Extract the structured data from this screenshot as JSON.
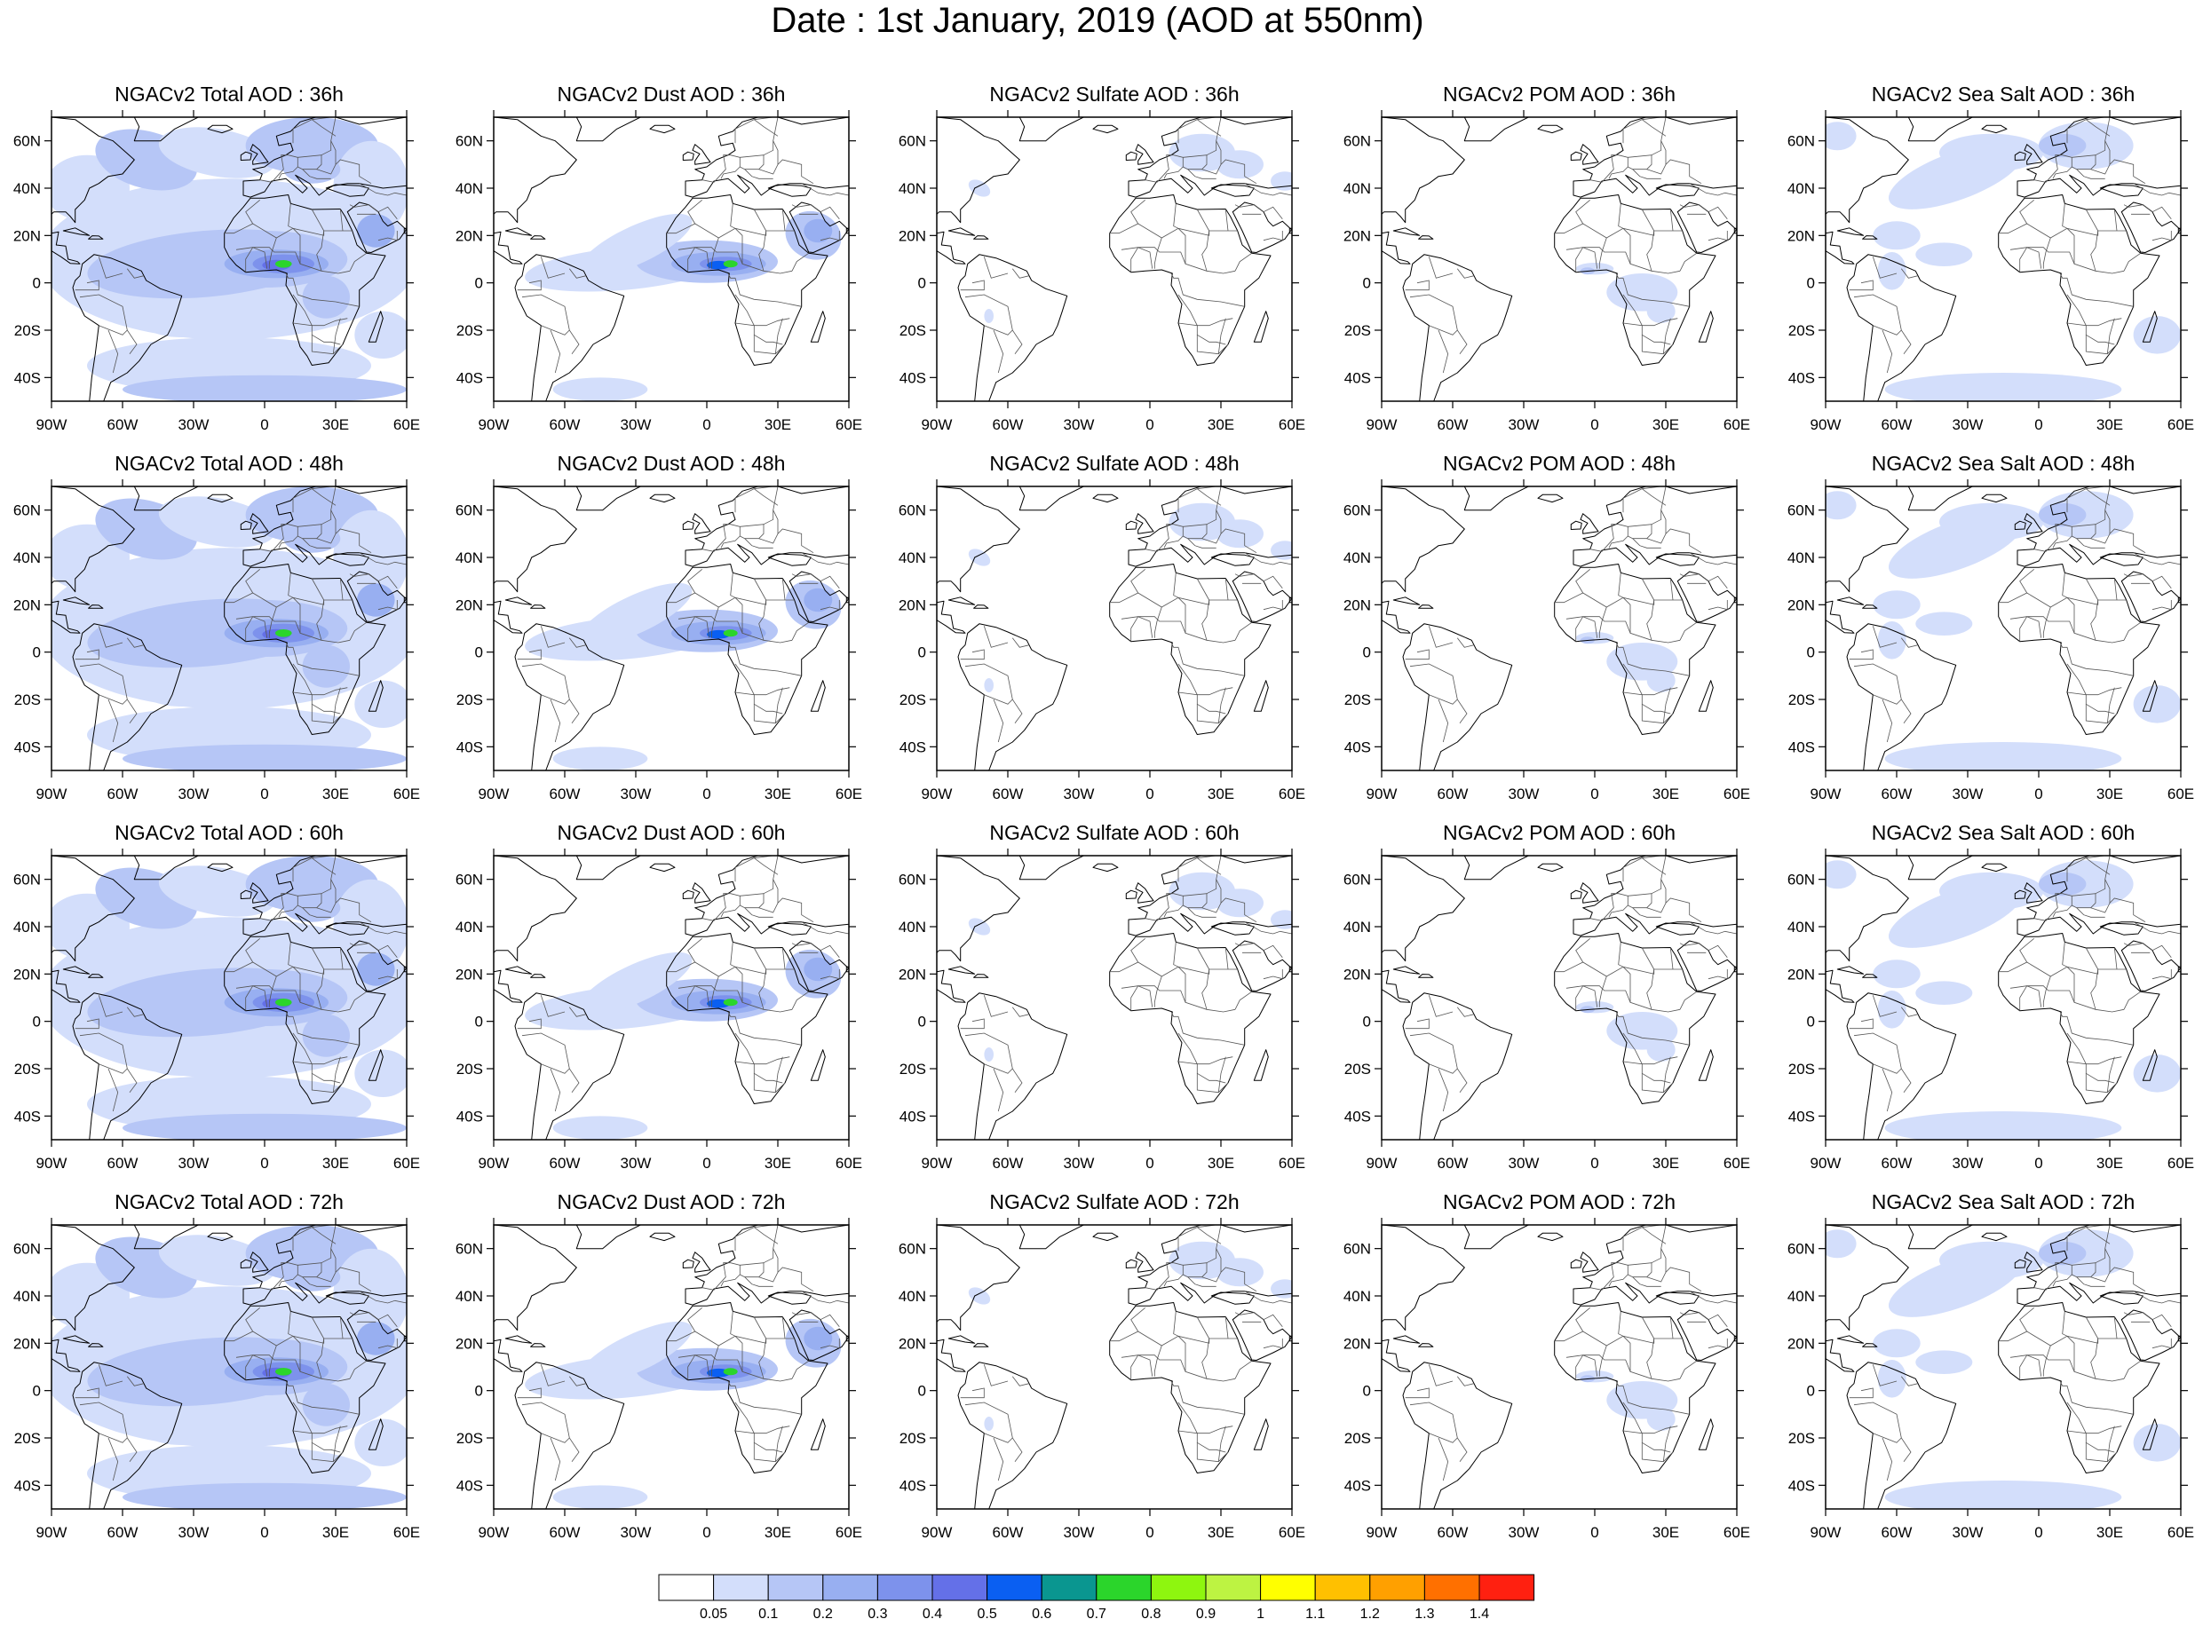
{
  "title": "Date : 1st January, 2019 (AOD at 550nm)",
  "projection": "cylindrical-equidistant",
  "map_extent": {
    "lon": [
      -90,
      60
    ],
    "lat": [
      -50,
      70
    ]
  },
  "lon_ticks": [
    {
      "value": -90,
      "label": "90W"
    },
    {
      "value": -60,
      "label": "60W"
    },
    {
      "value": -30,
      "label": "30W"
    },
    {
      "value": 0,
      "label": "0"
    },
    {
      "value": 30,
      "label": "30E"
    },
    {
      "value": 60,
      "label": "60E"
    }
  ],
  "lat_ticks": [
    {
      "value": 60,
      "label": "60N"
    },
    {
      "value": 40,
      "label": "40N"
    },
    {
      "value": 20,
      "label": "20N"
    },
    {
      "value": 0,
      "label": "0"
    },
    {
      "value": -20,
      "label": "20S"
    },
    {
      "value": -40,
      "label": "40S"
    }
  ],
  "colors": {
    "coastline": "#000000",
    "border": "#555555",
    "levels": [
      "#ffffff",
      "#d3defb",
      "#b6c6f6",
      "#98aff1",
      "#7d92ec",
      "#6470e8",
      "#0a5ff2",
      "#0a9690",
      "#2bd52b",
      "#8ef60f",
      "#bdf342",
      "#ffff00",
      "#ffc000",
      "#ffa000",
      "#ff7000",
      "#ff2010"
    ]
  },
  "colorbar": {
    "labels": [
      "0.05",
      "0.1",
      "0.2",
      "0.3",
      "0.4",
      "0.5",
      "0.6",
      "0.7",
      "0.8",
      "0.9",
      "1",
      "1.1",
      "1.2",
      "1.3",
      "1.4"
    ]
  },
  "panels": [
    {
      "title": "NGACv2 Total AOD : 36h",
      "kind": "total",
      "hour": 36
    },
    {
      "title": "NGACv2 Dust AOD : 36h",
      "kind": "dust",
      "hour": 36
    },
    {
      "title": "NGACv2 Sulfate AOD : 36h",
      "kind": "sulfate",
      "hour": 36
    },
    {
      "title": "NGACv2 POM AOD : 36h",
      "kind": "pom",
      "hour": 36
    },
    {
      "title": "NGACv2 Sea Salt AOD : 36h",
      "kind": "seasalt",
      "hour": 36
    },
    {
      "title": "NGACv2 Total AOD : 48h",
      "kind": "total",
      "hour": 48
    },
    {
      "title": "NGACv2 Dust AOD : 48h",
      "kind": "dust",
      "hour": 48
    },
    {
      "title": "NGACv2 Sulfate AOD : 48h",
      "kind": "sulfate",
      "hour": 48
    },
    {
      "title": "NGACv2 POM AOD : 48h",
      "kind": "pom",
      "hour": 48
    },
    {
      "title": "NGACv2 Sea Salt AOD : 48h",
      "kind": "seasalt",
      "hour": 48
    },
    {
      "title": "NGACv2 Total AOD : 60h",
      "kind": "total",
      "hour": 60
    },
    {
      "title": "NGACv2 Dust AOD : 60h",
      "kind": "dust",
      "hour": 60
    },
    {
      "title": "NGACv2 Sulfate AOD : 60h",
      "kind": "sulfate",
      "hour": 60
    },
    {
      "title": "NGACv2 POM AOD : 60h",
      "kind": "pom",
      "hour": 60
    },
    {
      "title": "NGACv2 Sea Salt AOD : 60h",
      "kind": "seasalt",
      "hour": 60
    },
    {
      "title": "NGACv2 Total AOD : 72h",
      "kind": "total",
      "hour": 72
    },
    {
      "title": "NGACv2 Dust AOD : 72h",
      "kind": "dust",
      "hour": 72
    },
    {
      "title": "NGACv2 Sulfate AOD : 72h",
      "kind": "sulfate",
      "hour": 72
    },
    {
      "title": "NGACv2 POM AOD : 72h",
      "kind": "pom",
      "hour": 72
    },
    {
      "title": "NGACv2 Sea Salt  AOD : 72h",
      "kind": "seasalt",
      "hour": 72
    }
  ]
}
